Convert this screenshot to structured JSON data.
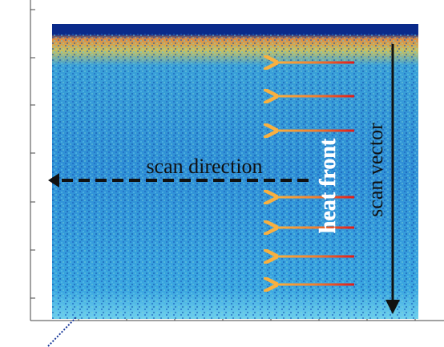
{
  "annotations": {
    "scan_direction": "scan direction",
    "heat_front": "heat front",
    "scan_vector": "scan vector"
  }
}
